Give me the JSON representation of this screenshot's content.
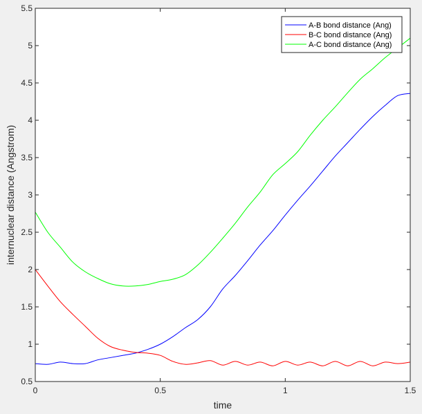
{
  "chart_data": {
    "type": "line",
    "title": "",
    "xlabel": "time",
    "ylabel": "internuclear distance (Angstrom)",
    "xlim": [
      0,
      1.5
    ],
    "ylim": [
      0.5,
      5.5
    ],
    "xticks": [
      0,
      0.5,
      1,
      1.5
    ],
    "xtick_labels": [
      "0",
      "0.5",
      "1",
      "1.5"
    ],
    "yticks": [
      0.5,
      1,
      1.5,
      2,
      2.5,
      3,
      3.5,
      4,
      4.5,
      5,
      5.5
    ],
    "ytick_labels": [
      "0.5",
      "1",
      "1.5",
      "2",
      "2.5",
      "3",
      "3.5",
      "4",
      "4.5",
      "5",
      "5.5"
    ],
    "grid": false,
    "legend_position": "top-right",
    "series": [
      {
        "name": "A-B bond distance (Ang)",
        "color": "#0000ff",
        "x": [
          0,
          0.05,
          0.1,
          0.15,
          0.2,
          0.25,
          0.3,
          0.35,
          0.4,
          0.45,
          0.5,
          0.55,
          0.6,
          0.65,
          0.7,
          0.75,
          0.8,
          0.85,
          0.9,
          0.95,
          1.0,
          1.05,
          1.1,
          1.15,
          1.2,
          1.25,
          1.3,
          1.35,
          1.4,
          1.45,
          1.5
        ],
        "y": [
          0.74,
          0.73,
          0.76,
          0.74,
          0.74,
          0.79,
          0.82,
          0.85,
          0.88,
          0.93,
          1.0,
          1.1,
          1.22,
          1.33,
          1.5,
          1.74,
          1.92,
          2.12,
          2.33,
          2.52,
          2.73,
          2.93,
          3.12,
          3.32,
          3.52,
          3.7,
          3.88,
          4.05,
          4.2,
          4.33,
          4.36
        ]
      },
      {
        "name": "B-C bond distance (Ang)",
        "color": "#ff0000",
        "x": [
          0,
          0.05,
          0.1,
          0.15,
          0.2,
          0.25,
          0.3,
          0.35,
          0.4,
          0.45,
          0.5,
          0.55,
          0.6,
          0.65,
          0.7,
          0.75,
          0.8,
          0.85,
          0.9,
          0.95,
          1.0,
          1.05,
          1.1,
          1.15,
          1.2,
          1.25,
          1.3,
          1.35,
          1.4,
          1.45,
          1.5
        ],
        "y": [
          2.0,
          1.78,
          1.57,
          1.4,
          1.24,
          1.08,
          0.97,
          0.92,
          0.89,
          0.88,
          0.85,
          0.77,
          0.73,
          0.75,
          0.78,
          0.72,
          0.77,
          0.72,
          0.76,
          0.71,
          0.77,
          0.72,
          0.76,
          0.71,
          0.77,
          0.71,
          0.77,
          0.71,
          0.76,
          0.74,
          0.76
        ]
      },
      {
        "name": "A-C bond distance (Ang)",
        "color": "#00ff00",
        "x": [
          0,
          0.05,
          0.1,
          0.15,
          0.2,
          0.25,
          0.3,
          0.35,
          0.4,
          0.45,
          0.5,
          0.55,
          0.6,
          0.65,
          0.7,
          0.75,
          0.8,
          0.85,
          0.9,
          0.95,
          1.0,
          1.05,
          1.1,
          1.15,
          1.2,
          1.25,
          1.3,
          1.35,
          1.4,
          1.45,
          1.5
        ],
        "y": [
          2.77,
          2.5,
          2.3,
          2.1,
          1.97,
          1.88,
          1.81,
          1.78,
          1.78,
          1.8,
          1.84,
          1.87,
          1.93,
          2.06,
          2.23,
          2.42,
          2.62,
          2.84,
          3.04,
          3.27,
          3.42,
          3.58,
          3.8,
          4.0,
          4.18,
          4.37,
          4.55,
          4.69,
          4.84,
          4.97,
          5.1
        ]
      }
    ]
  }
}
